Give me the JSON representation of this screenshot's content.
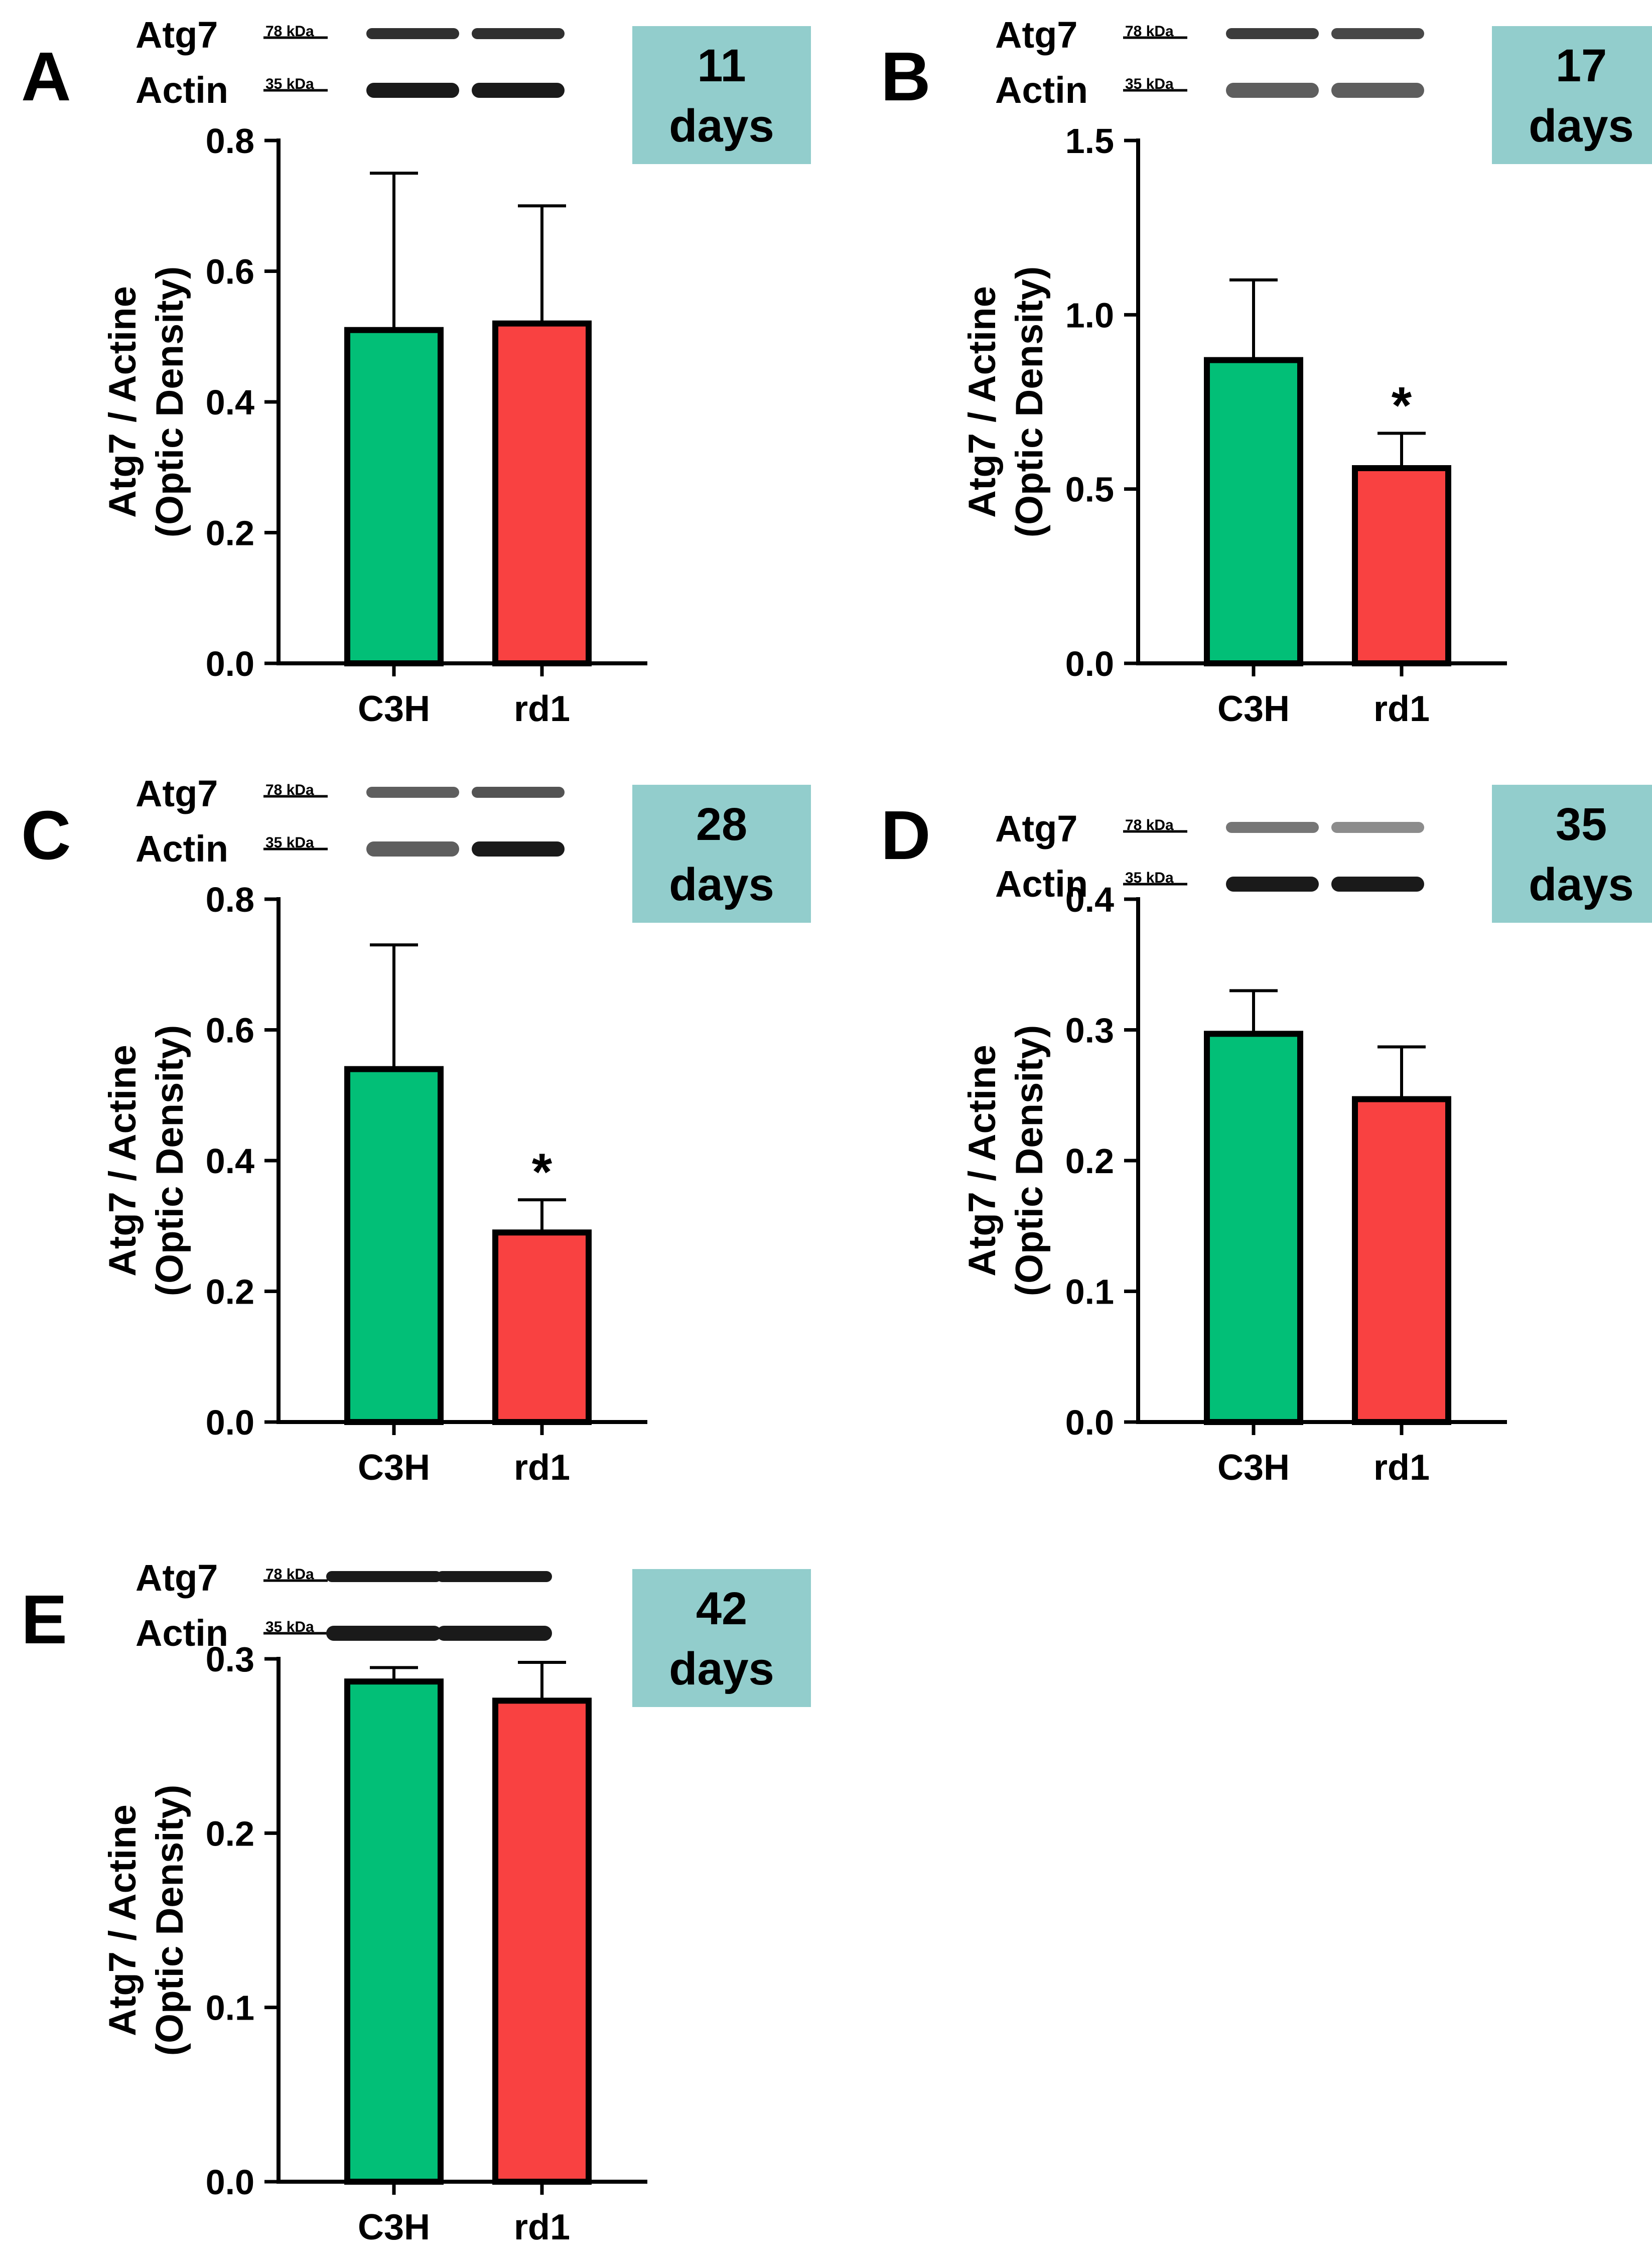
{
  "figure": {
    "colors": {
      "C3H": "#02bf77",
      "rd1": "#f94141",
      "edge": "#000000",
      "badge": "#92cdcc",
      "band": "#1a1a1a"
    },
    "blot_labels": [
      "Atg7",
      "Actin"
    ],
    "marker_labels": [
      "78 kDa",
      "35 kDa"
    ]
  },
  "chart_data": [
    {
      "panel": "A",
      "type": "bar",
      "badge": [
        "11",
        "days"
      ],
      "categories": [
        "C3H",
        "rd1"
      ],
      "values": [
        0.51,
        0.52
      ],
      "errors": [
        0.24,
        0.18
      ],
      "significance": [
        "",
        ""
      ],
      "ylabel": [
        "Atg7 / Actine",
        "(Optic Density)"
      ],
      "ylim": [
        0,
        0.8
      ],
      "ytick_labels": [
        "0.0",
        "0.2",
        "0.4",
        "0.6",
        "0.8"
      ]
    },
    {
      "panel": "B",
      "type": "bar",
      "badge": [
        "17",
        "days"
      ],
      "categories": [
        "C3H",
        "rd1"
      ],
      "values": [
        0.87,
        0.56
      ],
      "errors": [
        0.23,
        0.1
      ],
      "significance": [
        "",
        "*"
      ],
      "ylabel": [
        "Atg7 / Actine",
        "(Optic Density)"
      ],
      "ylim": [
        0,
        1.5
      ],
      "ytick_labels": [
        "0.0",
        "0.5",
        "1.0",
        "1.5"
      ]
    },
    {
      "panel": "C",
      "type": "bar",
      "badge": [
        "28",
        "days"
      ],
      "categories": [
        "C3H",
        "rd1"
      ],
      "values": [
        0.54,
        0.29
      ],
      "errors": [
        0.19,
        0.05
      ],
      "significance": [
        "",
        "*"
      ],
      "ylabel": [
        "Atg7 / Actine",
        "(Optic Density)"
      ],
      "ylim": [
        0,
        0.8
      ],
      "ytick_labels": [
        "0.0",
        "0.2",
        "0.4",
        "0.6",
        "0.8"
      ]
    },
    {
      "panel": "D",
      "type": "bar",
      "badge": [
        "35",
        "days"
      ],
      "categories": [
        "C3H",
        "rd1"
      ],
      "values": [
        0.297,
        0.247
      ],
      "errors": [
        0.033,
        0.04
      ],
      "significance": [
        "",
        ""
      ],
      "ylabel": [
        "Atg7 / Actine",
        "(Optic Density)"
      ],
      "ylim": [
        0,
        0.4
      ],
      "ytick_labels": [
        "0.0",
        "0.1",
        "0.2",
        "0.3",
        "0.4"
      ]
    },
    {
      "panel": "E",
      "type": "bar",
      "badge": [
        "42",
        "days"
      ],
      "categories": [
        "C3H",
        "rd1"
      ],
      "values": [
        0.287,
        0.276
      ],
      "errors": [
        0.008,
        0.022
      ],
      "significance": [
        "",
        ""
      ],
      "ylabel": [
        "Atg7 / Actine",
        "(Optic Density)"
      ],
      "ylim": [
        0,
        0.3
      ],
      "ytick_labels": [
        "0.0",
        "0.1",
        "0.2",
        "0.3"
      ]
    }
  ]
}
